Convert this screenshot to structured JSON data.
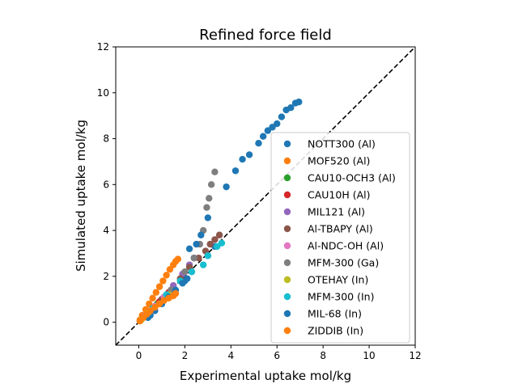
{
  "chart_data": {
    "type": "scatter",
    "title": "Refined force field",
    "xlabel": "Experimental uptake mol/kg",
    "ylabel": "Simulated uptake mol/kg",
    "xlim": [
      -1,
      12
    ],
    "ylim": [
      -1,
      12
    ],
    "xticks": [
      0,
      2,
      4,
      6,
      8,
      10,
      12
    ],
    "yticks": [
      0,
      2,
      4,
      6,
      8,
      10,
      12
    ],
    "grid": false,
    "legend_position": "lower-right",
    "reference_line": {
      "style": "dashed",
      "color": "#000000",
      "x": [
        -1,
        12
      ],
      "y": [
        -1,
        12
      ]
    },
    "series": [
      {
        "name": "NOTT300 (Al)",
        "color": "#1f77b4",
        "x": [
          0.5,
          1.0,
          1.5,
          2.0,
          2.3,
          3.0,
          3.3,
          3.8,
          4.2,
          4.5,
          4.8,
          5.2,
          5.4,
          5.6,
          5.8,
          6.0,
          6.2,
          6.4,
          6.6,
          6.8,
          6.95
        ],
        "y": [
          0.3,
          0.8,
          1.3,
          1.8,
          2.2,
          2.9,
          3.3,
          5.9,
          6.6,
          7.1,
          7.3,
          7.8,
          8.1,
          8.35,
          8.5,
          8.65,
          8.95,
          9.25,
          9.35,
          9.55,
          9.6
        ]
      },
      {
        "name": "MOF520 (Al)",
        "color": "#ff7f0e",
        "x": [
          0.05,
          0.15,
          0.3,
          0.45,
          0.6,
          0.75,
          0.9,
          1.05,
          1.2,
          1.35,
          1.5,
          1.6,
          1.7
        ],
        "y": [
          0.1,
          0.3,
          0.55,
          0.8,
          1.05,
          1.3,
          1.55,
          1.8,
          2.05,
          2.3,
          2.5,
          2.65,
          2.75
        ]
      },
      {
        "name": "CAU10-OCH3 (Al)",
        "color": "#2ca02c",
        "x": [
          0.1,
          0.3,
          0.5,
          0.8,
          1.1
        ],
        "y": [
          0.1,
          0.3,
          0.5,
          0.8,
          1.1
        ]
      },
      {
        "name": "CAU10H (Al)",
        "color": "#d62728",
        "x": [
          0.2,
          0.5,
          0.9,
          1.3
        ],
        "y": [
          0.2,
          0.5,
          0.9,
          1.3
        ]
      },
      {
        "name": "MIL121 (Al)",
        "color": "#9467bd",
        "x": [
          0.5,
          1.0,
          1.5,
          1.9,
          2.2,
          2.4
        ],
        "y": [
          0.5,
          1.0,
          1.6,
          2.1,
          2.5,
          2.8
        ]
      },
      {
        "name": "Al-TBAPY (Al)",
        "color": "#8c564b",
        "x": [
          0.6,
          1.0,
          1.4,
          1.8,
          2.2,
          2.6,
          2.9,
          3.1,
          3.3,
          3.5
        ],
        "y": [
          0.6,
          1.0,
          1.4,
          1.9,
          2.4,
          2.8,
          3.1,
          3.4,
          3.6,
          3.8
        ]
      },
      {
        "name": "Al-NDC-OH (Al)",
        "color": "#e377c2",
        "x": [
          0.3,
          0.7,
          1.1
        ],
        "y": [
          0.3,
          0.7,
          1.1
        ]
      },
      {
        "name": "MFM-300 (Ga)",
        "color": "#7f7f7f",
        "x": [
          1.4,
          2.0,
          2.4,
          2.65,
          2.8,
          2.95,
          3.05,
          3.15,
          3.3
        ],
        "y": [
          1.4,
          2.2,
          2.8,
          3.4,
          4.0,
          5.0,
          5.4,
          6.0,
          6.55
        ]
      },
      {
        "name": "OTEHAY (In)",
        "color": "#bcbd22",
        "x": [
          0.1,
          0.4,
          0.9,
          1.3
        ],
        "y": [
          0.1,
          0.4,
          0.8,
          1.2
        ]
      },
      {
        "name": "MFM-300 (In)",
        "color": "#17becf",
        "x": [
          0.6,
          1.2,
          1.8,
          2.3,
          2.8,
          3.0,
          3.4,
          3.6
        ],
        "y": [
          0.6,
          1.2,
          1.8,
          2.2,
          2.5,
          2.9,
          3.3,
          3.45
        ]
      },
      {
        "name": "MIL-68 (In)",
        "color": "#1f77b4",
        "x": [
          0.4,
          0.7,
          1.0,
          1.3,
          1.6,
          1.9,
          2.1,
          2.2,
          2.5,
          2.7,
          3.0
        ],
        "y": [
          0.2,
          0.5,
          0.8,
          1.1,
          1.4,
          1.7,
          1.9,
          3.2,
          3.4,
          3.8,
          4.55
        ]
      },
      {
        "name": "ZIDDIB (In)",
        "color": "#ff7f0e",
        "x": [
          0.05,
          0.2,
          0.35,
          0.5,
          0.7,
          0.9,
          1.1,
          1.3,
          1.5,
          1.6
        ],
        "y": [
          0.05,
          0.2,
          0.35,
          0.5,
          0.65,
          0.8,
          0.95,
          1.05,
          1.15,
          1.25
        ]
      }
    ]
  }
}
